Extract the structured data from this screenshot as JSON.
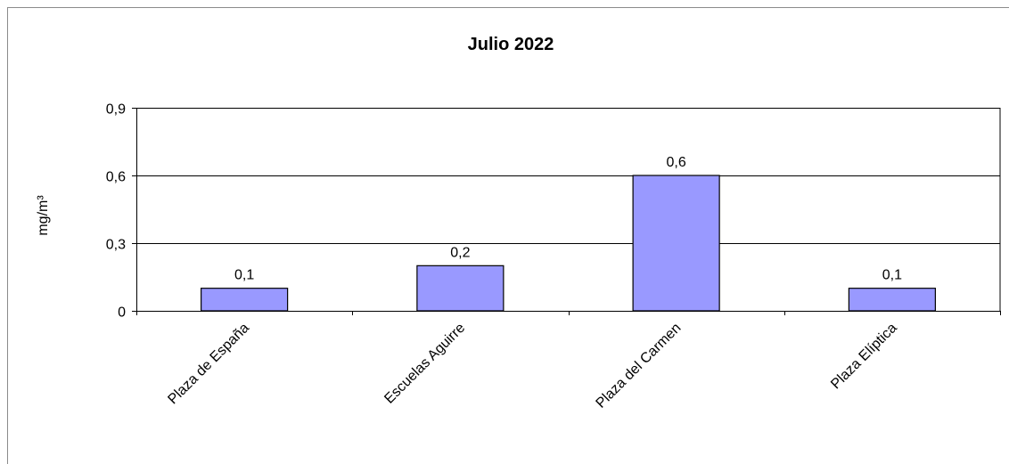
{
  "chart_data": {
    "type": "bar",
    "title": "Julio 2022",
    "xlabel": "",
    "ylabel": "mg/m³",
    "categories": [
      "Plaza de España",
      "Escuelas Aguirre",
      "Plaza del Carmen",
      "Plaza Elíptica"
    ],
    "values": [
      0.1,
      0.2,
      0.6,
      0.1
    ],
    "value_labels": [
      "0,1",
      "0,2",
      "0,6",
      "0,1"
    ],
    "yticks": [
      0,
      0.3,
      0.6,
      0.9
    ],
    "ytick_labels": [
      "0",
      "0,3",
      "0,6",
      "0,9"
    ],
    "ylim": [
      0,
      0.9
    ],
    "grid": true,
    "legend": "none",
    "bar_color": "#9999ff"
  }
}
